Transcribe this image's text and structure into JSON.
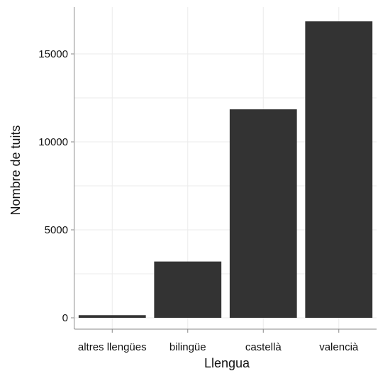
{
  "chart_data": {
    "type": "bar",
    "xlabel": "Llengua",
    "ylabel": "Nombre de tuits",
    "categories": [
      "altres llengües",
      "bilingüe",
      "castellà",
      "valencià"
    ],
    "values": [
      150,
      3200,
      11850,
      16850
    ],
    "ylim": [
      0,
      17000
    ],
    "yticks": [
      0,
      5000,
      10000,
      15000
    ],
    "grid": true,
    "bar_color": "#333333",
    "grid_color": "#ebebeb",
    "axis_color": "#888888"
  }
}
